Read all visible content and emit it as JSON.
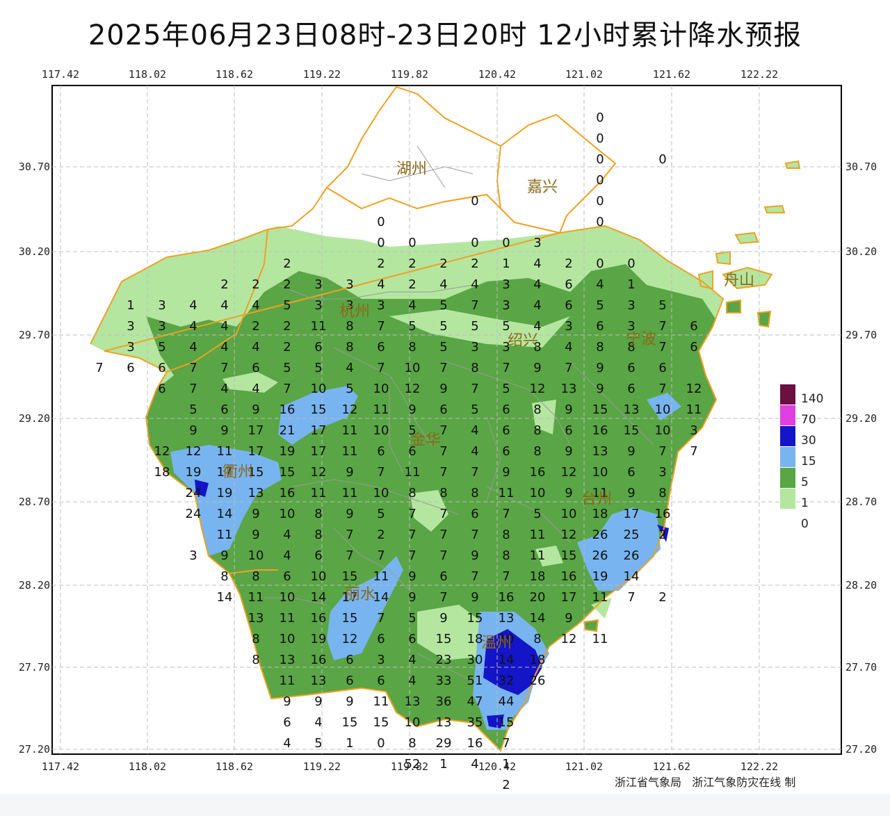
{
  "title": "2025年06月23日08时-23日20时 12小时累计降水预报",
  "axes": {
    "lon_ticks": [
      "117.42",
      "118.02",
      "118.62",
      "119.22",
      "119.82",
      "120.42",
      "121.02",
      "121.62",
      "122.22"
    ],
    "lat_ticks": [
      "30.70",
      "30.20",
      "29.70",
      "29.20",
      "28.70",
      "28.20",
      "27.70",
      "27.20"
    ]
  },
  "legend": {
    "items": [
      {
        "label": "140",
        "color": "#6b1040"
      },
      {
        "label": "70",
        "color": "#e040e0"
      },
      {
        "label": "30",
        "color": "#1414c8"
      },
      {
        "label": "15",
        "color": "#78b4f0"
      },
      {
        "label": "5",
        "color": "#5aa545"
      },
      {
        "label": "1",
        "color": "#b4e6a0"
      },
      {
        "label": "0",
        "color": "#ffffff"
      }
    ]
  },
  "cities": [
    "湖州",
    "嘉兴",
    "杭州",
    "绍兴",
    "宁波",
    "金华",
    "衢州",
    "台州",
    "丽水",
    "温州",
    "舟山"
  ],
  "credit": "浙江省气象局   浙江气象防灾在线 制",
  "colors": {
    "province_border": "#f0a020",
    "county_border": "#9a9a9a",
    "grid": "#bdbdbd"
  }
}
